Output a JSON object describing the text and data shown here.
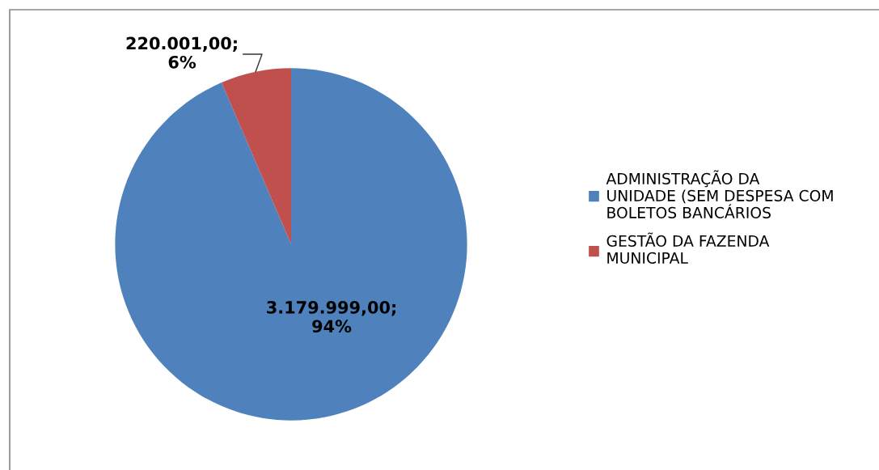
{
  "chart_data": {
    "type": "pie",
    "categories": [
      "ADMINISTRAÇÃO DA\nUNIDADE (SEM DESPESA COM\nBOLETOS BANCÁRIOS",
      "GESTÃO DA FAZENDA\nMUNICIPAL"
    ],
    "values": [
      3179999.0,
      220001.0
    ],
    "colors": [
      "#4f81bd",
      "#c0504d"
    ],
    "value_labels": [
      "3.179.999,00;\n94%",
      "220.001,00;\n6%"
    ],
    "legend": "right"
  }
}
